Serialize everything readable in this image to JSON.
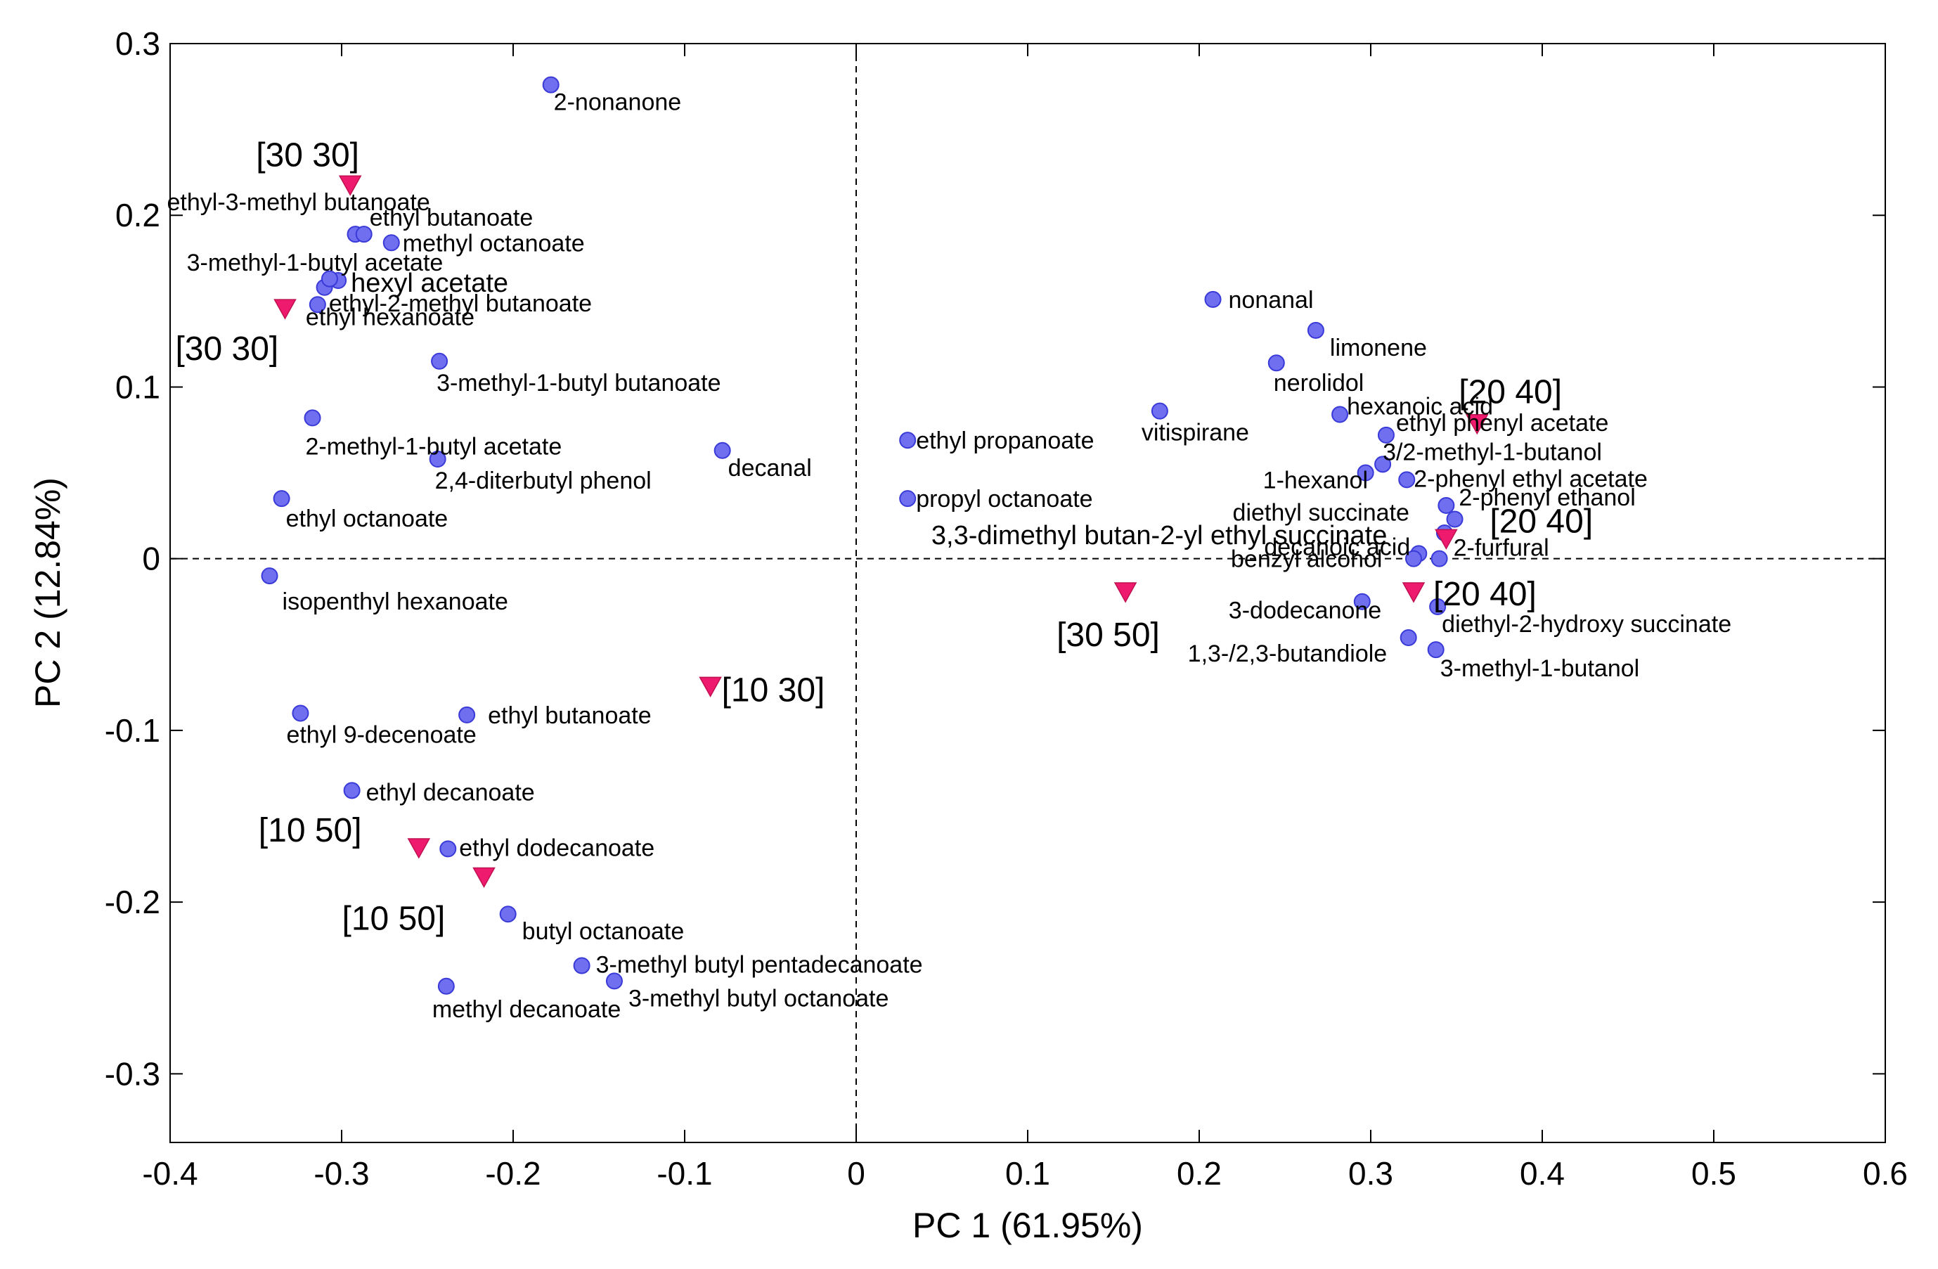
{
  "chart_data": {
    "type": "scatter",
    "title": "",
    "xlabel": "PC 1 (61.95%)",
    "ylabel": "PC 2 (12.84%)",
    "xlim": [
      -0.4,
      0.6
    ],
    "ylim": [
      -0.34,
      0.3
    ],
    "xticks": [
      -0.4,
      -0.3,
      -0.2,
      -0.1,
      0,
      0.1,
      0.2,
      0.3,
      0.4,
      0.5,
      0.6
    ],
    "yticks": [
      -0.3,
      -0.2,
      -0.1,
      0,
      0.1,
      0.2,
      0.3
    ],
    "grid": false,
    "reference_lines": {
      "x": 0,
      "y": 0,
      "style": "dashed"
    },
    "colors": {
      "loadings": "#6f6ff0",
      "loadings_edge": "#3a3ad8",
      "samples": "#ee1a6e"
    },
    "series": [
      {
        "name": "compounds",
        "marker": "circle",
        "points": [
          {
            "x": -0.178,
            "y": 0.276,
            "label": "2-nonanone"
          },
          {
            "x": -0.292,
            "y": 0.189,
            "label": "ethyl-3-methyl butanoate"
          },
          {
            "x": -0.287,
            "y": 0.189,
            "label": "ethyl butanoate"
          },
          {
            "x": -0.271,
            "y": 0.184,
            "label": "methyl octanoate"
          },
          {
            "x": -0.31,
            "y": 0.158,
            "label": "3-methyl-1-butyl acetate"
          },
          {
            "x": -0.302,
            "y": 0.162,
            "label": "hexyl acetate"
          },
          {
            "x": -0.314,
            "y": 0.148,
            "label": "ethyl-2-methyl butanoate"
          },
          {
            "x": -0.307,
            "y": 0.163,
            "label": "ethyl hexanoate"
          },
          {
            "x": -0.243,
            "y": 0.115,
            "label": "3-methyl-1-butyl butanoate"
          },
          {
            "x": -0.317,
            "y": 0.082,
            "label": "2-methyl-1-butyl acetate"
          },
          {
            "x": -0.244,
            "y": 0.058,
            "label": "2,4-diterbutyl phenol"
          },
          {
            "x": -0.078,
            "y": 0.063,
            "label": "decanal"
          },
          {
            "x": -0.335,
            "y": 0.035,
            "label": "ethyl octanoate"
          },
          {
            "x": -0.342,
            "y": -0.01,
            "label": "isopenthyl hexanoate"
          },
          {
            "x": -0.227,
            "y": -0.091,
            "label": "ethyl butanoate"
          },
          {
            "x": -0.324,
            "y": -0.09,
            "label": "ethyl 9-decenoate"
          },
          {
            "x": -0.294,
            "y": -0.135,
            "label": "ethyl decanoate"
          },
          {
            "x": -0.238,
            "y": -0.169,
            "label": "ethyl dodecanoate"
          },
          {
            "x": -0.203,
            "y": -0.207,
            "label": "butyl octanoate"
          },
          {
            "x": -0.16,
            "y": -0.237,
            "label": "3-methyl butyl pentadecanoate"
          },
          {
            "x": -0.141,
            "y": -0.246,
            "label": "3-methyl butyl octanoate"
          },
          {
            "x": -0.239,
            "y": -0.249,
            "label": "methyl decanoate"
          },
          {
            "x": 0.208,
            "y": 0.151,
            "label": "nonanal"
          },
          {
            "x": 0.268,
            "y": 0.133,
            "label": "limonene"
          },
          {
            "x": 0.245,
            "y": 0.114,
            "label": "nerolidol"
          },
          {
            "x": 0.177,
            "y": 0.086,
            "label": "vitispirane"
          },
          {
            "x": 0.282,
            "y": 0.084,
            "label": "hexanoic acid"
          },
          {
            "x": 0.03,
            "y": 0.069,
            "label": "ethyl propanoate"
          },
          {
            "x": 0.309,
            "y": 0.072,
            "label": "ethyl phenyl acetate"
          },
          {
            "x": 0.307,
            "y": 0.055,
            "label": "3/2-methyl-1-butanol"
          },
          {
            "x": 0.297,
            "y": 0.05,
            "label": "1-hexanol"
          },
          {
            "x": 0.321,
            "y": 0.046,
            "label": "2-phenyl ethyl acetate"
          },
          {
            "x": 0.03,
            "y": 0.035,
            "label": "propyl octanoate"
          },
          {
            "x": 0.344,
            "y": 0.031,
            "label": "2-phenyl ethanol"
          },
          {
            "x": 0.349,
            "y": 0.023,
            "label": "diethyl succinate"
          },
          {
            "x": 0.343,
            "y": 0.015,
            "label": "3,3-dimethyl butan-2-yl ethyl succinate"
          },
          {
            "x": 0.328,
            "y": 0.003,
            "label": "decanoic acid"
          },
          {
            "x": 0.325,
            "y": 0.0,
            "label": "benzyl alcohol"
          },
          {
            "x": 0.34,
            "y": 0.0,
            "label": "2-furfural"
          },
          {
            "x": 0.295,
            "y": -0.025,
            "label": "3-dodecanone"
          },
          {
            "x": 0.339,
            "y": -0.028,
            "label": "diethyl-2-hydroxy succinate"
          },
          {
            "x": 0.322,
            "y": -0.046,
            "label": "1,3-/2,3-butandiole"
          },
          {
            "x": 0.338,
            "y": -0.053,
            "label": "3-methyl-1-butanol"
          }
        ]
      },
      {
        "name": "samples",
        "marker": "triangle-down",
        "points": [
          {
            "x": -0.295,
            "y": 0.218,
            "label": "[30 30]"
          },
          {
            "x": -0.333,
            "y": 0.146,
            "label": "[30 30]"
          },
          {
            "x": -0.085,
            "y": -0.074,
            "label": "[10 30]"
          },
          {
            "x": -0.255,
            "y": -0.168,
            "label": "[10 50]"
          },
          {
            "x": -0.217,
            "y": -0.185,
            "label": "[10 50]"
          },
          {
            "x": 0.157,
            "y": -0.019,
            "label": "[30 50]"
          },
          {
            "x": 0.362,
            "y": 0.079,
            "label": "[20 40]"
          },
          {
            "x": 0.344,
            "y": 0.012,
            "label": "[20 40]"
          },
          {
            "x": 0.325,
            "y": -0.019,
            "label": "[20 40]"
          }
        ]
      }
    ]
  }
}
